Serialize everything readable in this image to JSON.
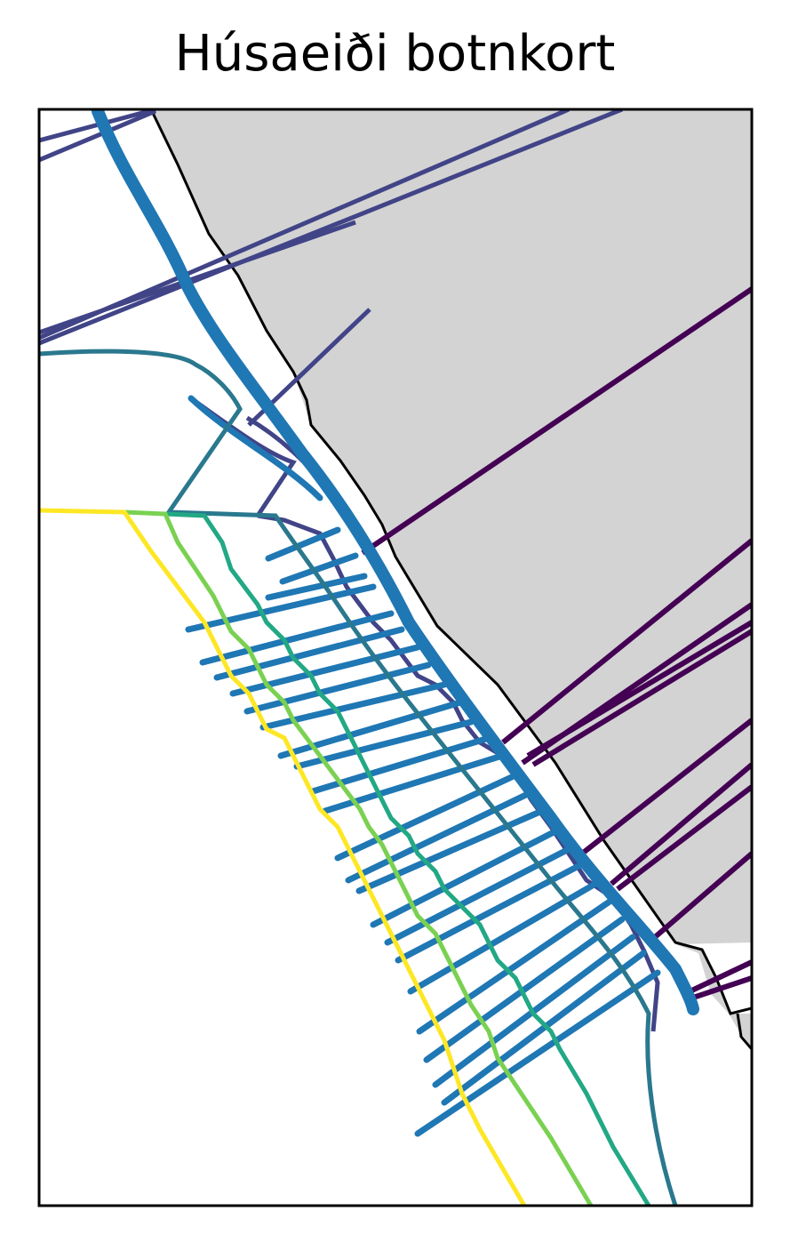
{
  "title": "Húsaeiði botnkort",
  "colors": {
    "land_fill": "#d3d3d3",
    "coastline": "#000000",
    "survey_tracks": "#1f77b4",
    "contour_1": "#440154",
    "contour_2": "#414487",
    "contour_3": "#2a788e",
    "contour_4": "#22a884",
    "contour_5": "#7ad151",
    "contour_6": "#fde725",
    "frame": "#000000"
  },
  "layers": [
    "land",
    "coastline",
    "survey-tracks",
    "depth-contours"
  ],
  "axes_ticks": "none"
}
